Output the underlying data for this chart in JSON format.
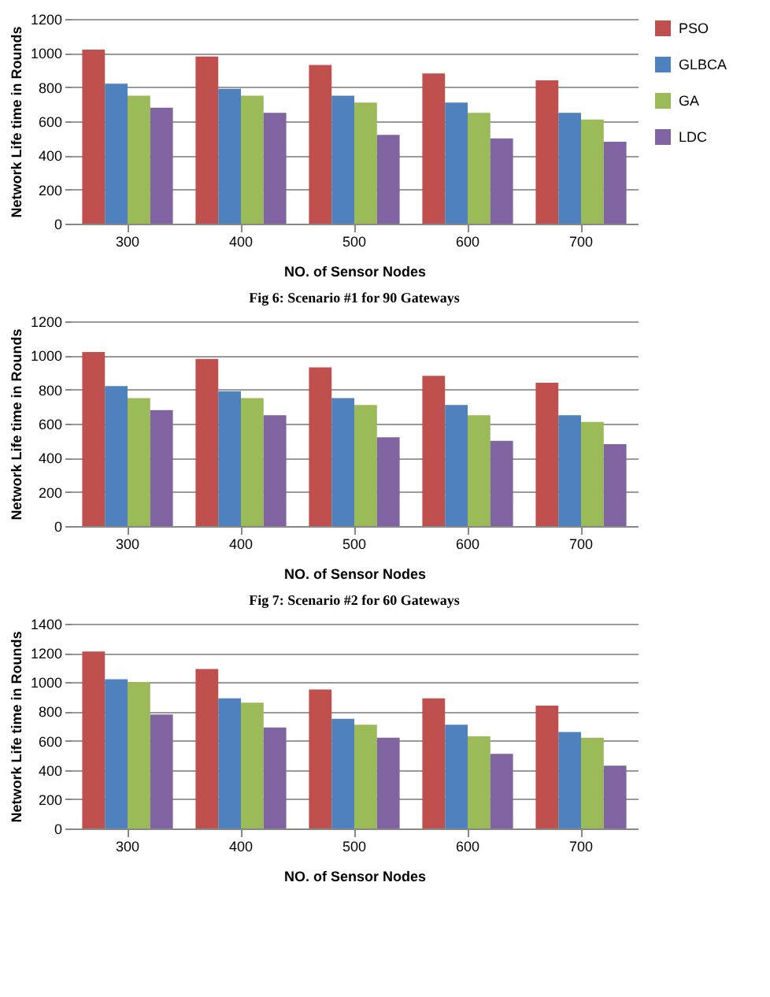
{
  "chart_data": [
    {
      "type": "bar",
      "xlabel": "NO. of Sensor Nodes",
      "ylabel": "Network Life time in Rounds",
      "categories": [
        "300",
        "400",
        "500",
        "600",
        "700"
      ],
      "ylim": [
        0,
        1200
      ],
      "yticks": [
        0,
        200,
        400,
        600,
        800,
        1000,
        1200
      ],
      "grid": "y",
      "legend": "right",
      "annotations": [
        "Fig 6: Scenario #1 for 90 Gateways"
      ],
      "series": [
        {
          "name": "PSO",
          "color": "#c0504d",
          "values": [
            1020,
            980,
            930,
            880,
            840
          ]
        },
        {
          "name": "GLBCA",
          "color": "#4f81bd",
          "values": [
            820,
            790,
            750,
            710,
            650
          ]
        },
        {
          "name": "GA",
          "color": "#9bbb59",
          "values": [
            750,
            750,
            710,
            650,
            610
          ]
        },
        {
          "name": "LDC",
          "color": "#8064a2",
          "values": [
            680,
            650,
            520,
            500,
            480
          ]
        }
      ]
    },
    {
      "type": "bar",
      "xlabel": "NO. of Sensor Nodes",
      "ylabel": "Network Life time in Rounds",
      "categories": [
        "300",
        "400",
        "500",
        "600",
        "700"
      ],
      "ylim": [
        0,
        1200
      ],
      "yticks": [
        0,
        200,
        400,
        600,
        800,
        1000,
        1200
      ],
      "grid": "y",
      "legend": "right",
      "annotations": [
        "Fig 7: Scenario #2 for 60 Gateways"
      ],
      "series": [
        {
          "name": "PSO",
          "color": "#c0504d",
          "values": [
            1020,
            980,
            930,
            880,
            840
          ]
        },
        {
          "name": "GLBCA",
          "color": "#4f81bd",
          "values": [
            820,
            790,
            750,
            710,
            650
          ]
        },
        {
          "name": "GA",
          "color": "#9bbb59",
          "values": [
            750,
            750,
            710,
            650,
            610
          ]
        },
        {
          "name": "LDC",
          "color": "#8064a2",
          "values": [
            680,
            650,
            520,
            500,
            480
          ]
        }
      ]
    },
    {
      "type": "bar",
      "xlabel": "NO. of Sensor Nodes",
      "ylabel": "Network Life time in Rounds",
      "categories": [
        "300",
        "400",
        "500",
        "600",
        "700"
      ],
      "ylim": [
        0,
        1400
      ],
      "yticks": [
        0,
        200,
        400,
        600,
        800,
        1000,
        1200,
        1400
      ],
      "grid": "y",
      "legend": "right",
      "series": [
        {
          "name": "PSO",
          "color": "#c0504d",
          "values": [
            1210,
            1090,
            950,
            890,
            840
          ]
        },
        {
          "name": "GLBCA",
          "color": "#4f81bd",
          "values": [
            1020,
            890,
            750,
            710,
            660
          ]
        },
        {
          "name": "GA",
          "color": "#9bbb59",
          "values": [
            1000,
            860,
            710,
            630,
            620
          ]
        },
        {
          "name": "LDC",
          "color": "#8064a2",
          "values": [
            780,
            690,
            620,
            510,
            430
          ]
        }
      ]
    }
  ]
}
